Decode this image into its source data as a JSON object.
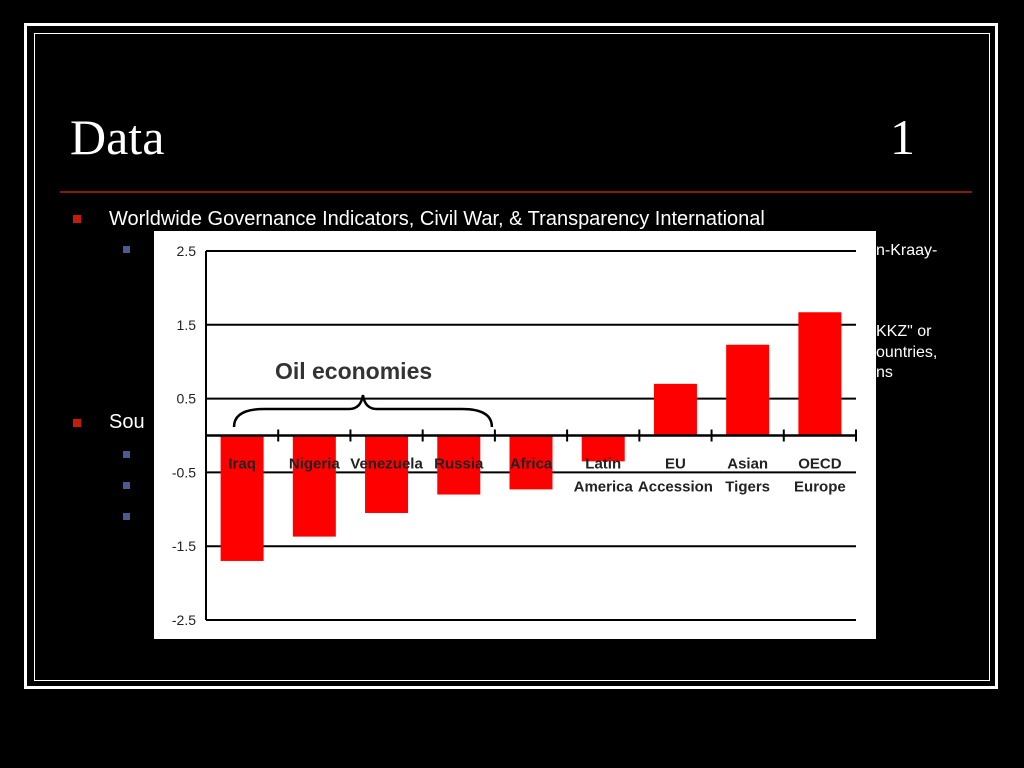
{
  "slide": {
    "title": "Data",
    "number": "1",
    "bullets": [
      {
        "text": "Worldwide Governance Indicators, Civil War, & Transparency International"
      },
      {
        "text": "Sou"
      }
    ],
    "partial_text": {
      "line1": "n-Kraay-",
      "line2": "KKZ\" or",
      "line3": "ountries,",
      "line4": "ns"
    }
  },
  "colors": {
    "background": "#000000",
    "bullet": "#c41b0a",
    "sub_bullet": "#4b5a8f",
    "bar": "#ff0000",
    "rule": "#8a1a10"
  },
  "chart_data": {
    "type": "bar",
    "categories": [
      [
        "Iraq"
      ],
      [
        "Nigeria"
      ],
      [
        "Venezuela"
      ],
      [
        "Russia"
      ],
      [
        "Africa"
      ],
      [
        "Latin",
        "America"
      ],
      [
        "EU",
        "Accession"
      ],
      [
        "Asian",
        "Tigers"
      ],
      [
        "OECD",
        "Europe"
      ]
    ],
    "values": [
      -1.7,
      -1.37,
      -1.05,
      -0.8,
      -0.73,
      -0.35,
      0.7,
      1.23,
      1.67
    ],
    "ylim": [
      -2.5,
      2.5
    ],
    "yticks": [
      "2.5",
      "1.5",
      "0.5",
      "-0.5",
      "-1.5",
      "-2.5"
    ],
    "ytick_values": [
      2.5,
      1.5,
      0.5,
      -0.5,
      -1.5,
      -2.5
    ],
    "grid": true,
    "annotation": {
      "text": "Oil economies",
      "spans_categories": [
        0,
        3
      ]
    },
    "bar_color": "#ff0000"
  }
}
